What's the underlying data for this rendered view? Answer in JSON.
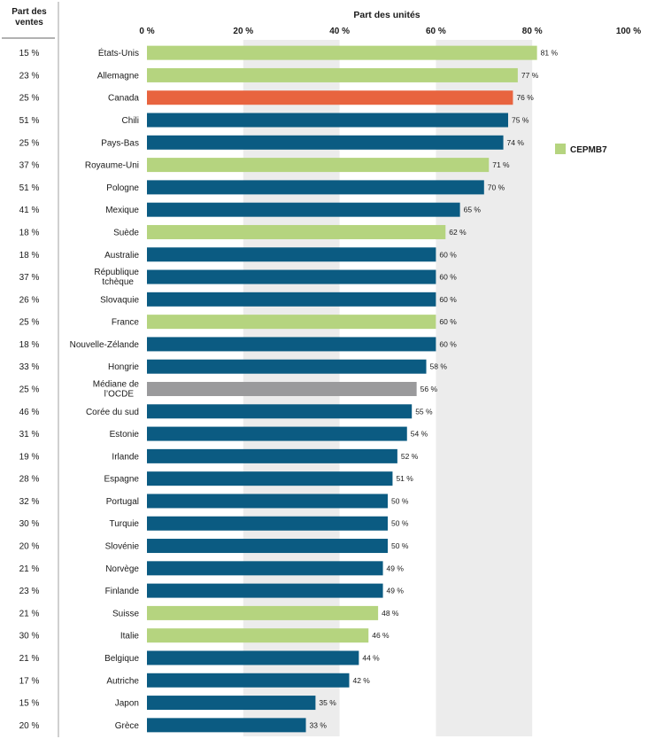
{
  "chart_data": {
    "type": "bar",
    "orientation": "horizontal",
    "title": "",
    "xlabel": "Part des unités",
    "left_column_header": "Part des ventes",
    "xlim": [
      0,
      100
    ],
    "x_ticks": [
      "0 %",
      "20 %",
      "40 %",
      "60 %",
      "80 %",
      "100 %"
    ],
    "legend": {
      "label": "CEPMB7",
      "color": "#b5d47f",
      "placement": "right"
    },
    "colors": {
      "cepmb7": "#b5d47f",
      "canada": "#e8643f",
      "median": "#9a9a9c",
      "other": "#0b5b82"
    },
    "rows": [
      {
        "country": "États-Unis",
        "sales": "15 %",
        "value": 81,
        "label": "81 %",
        "group": "cepmb7"
      },
      {
        "country": "Allemagne",
        "sales": "23 %",
        "value": 77,
        "label": "77 %",
        "group": "cepmb7"
      },
      {
        "country": "Canada",
        "sales": "25 %",
        "value": 76,
        "label": "76 %",
        "group": "canada"
      },
      {
        "country": "Chili",
        "sales": "51 %",
        "value": 75,
        "label": "75 %",
        "group": "other"
      },
      {
        "country": "Pays-Bas",
        "sales": "25 %",
        "value": 74,
        "label": "74 %",
        "group": "other"
      },
      {
        "country": "Royaume-Uni",
        "sales": "37 %",
        "value": 71,
        "label": "71 %",
        "group": "cepmb7"
      },
      {
        "country": "Pologne",
        "sales": "51 %",
        "value": 70,
        "label": "70 %",
        "group": "other"
      },
      {
        "country": "Mexique",
        "sales": "41 %",
        "value": 65,
        "label": "65 %",
        "group": "other"
      },
      {
        "country": "Suède",
        "sales": "18 %",
        "value": 62,
        "label": "62 %",
        "group": "cepmb7"
      },
      {
        "country": "Australie",
        "sales": "18 %",
        "value": 60,
        "label": "60 %",
        "group": "other"
      },
      {
        "country": "République tchèque",
        "sales": "37 %",
        "value": 60,
        "label": "60 %",
        "group": "other"
      },
      {
        "country": "Slovaquie",
        "sales": "26 %",
        "value": 60,
        "label": "60 %",
        "group": "other"
      },
      {
        "country": "France",
        "sales": "25 %",
        "value": 60,
        "label": "60 %",
        "group": "cepmb7"
      },
      {
        "country": "Nouvelle-Zélande",
        "sales": "18 %",
        "value": 60,
        "label": "60 %",
        "group": "other"
      },
      {
        "country": "Hongrie",
        "sales": "33 %",
        "value": 58,
        "label": "58 %",
        "group": "other"
      },
      {
        "country": "Médiane de l’OCDE",
        "sales": "25 %",
        "value": 56,
        "label": "56 %",
        "group": "median"
      },
      {
        "country": "Corée du sud",
        "sales": "46 %",
        "value": 55,
        "label": "55 %",
        "group": "other"
      },
      {
        "country": "Estonie",
        "sales": "31 %",
        "value": 54,
        "label": "54 %",
        "group": "other"
      },
      {
        "country": "Irlande",
        "sales": "19 %",
        "value": 52,
        "label": "52 %",
        "group": "other"
      },
      {
        "country": "Espagne",
        "sales": "28 %",
        "value": 51,
        "label": "51 %",
        "group": "other"
      },
      {
        "country": "Portugal",
        "sales": "32 %",
        "value": 50,
        "label": "50 %",
        "group": "other"
      },
      {
        "country": "Turquie",
        "sales": "30 %",
        "value": 50,
        "label": "50 %",
        "group": "other"
      },
      {
        "country": "Slovénie",
        "sales": "20 %",
        "value": 50,
        "label": "50 %",
        "group": "other"
      },
      {
        "country": "Norvège",
        "sales": "21 %",
        "value": 49,
        "label": "49 %",
        "group": "other"
      },
      {
        "country": "Finlande",
        "sales": "23 %",
        "value": 49,
        "label": "49 %",
        "group": "other"
      },
      {
        "country": "Suisse",
        "sales": "21 %",
        "value": 48,
        "label": "48 %",
        "group": "cepmb7"
      },
      {
        "country": "Italie",
        "sales": "30 %",
        "value": 46,
        "label": "46 %",
        "group": "cepmb7"
      },
      {
        "country": "Belgique",
        "sales": "21 %",
        "value": 44,
        "label": "44 %",
        "group": "other"
      },
      {
        "country": "Autriche",
        "sales": "17 %",
        "value": 42,
        "label": "42 %",
        "group": "other"
      },
      {
        "country": "Japon",
        "sales": "15 %",
        "value": 35,
        "label": "35 %",
        "group": "other"
      },
      {
        "country": "Grèce",
        "sales": "20 %",
        "value": 33,
        "label": "33 %",
        "group": "other"
      }
    ]
  }
}
